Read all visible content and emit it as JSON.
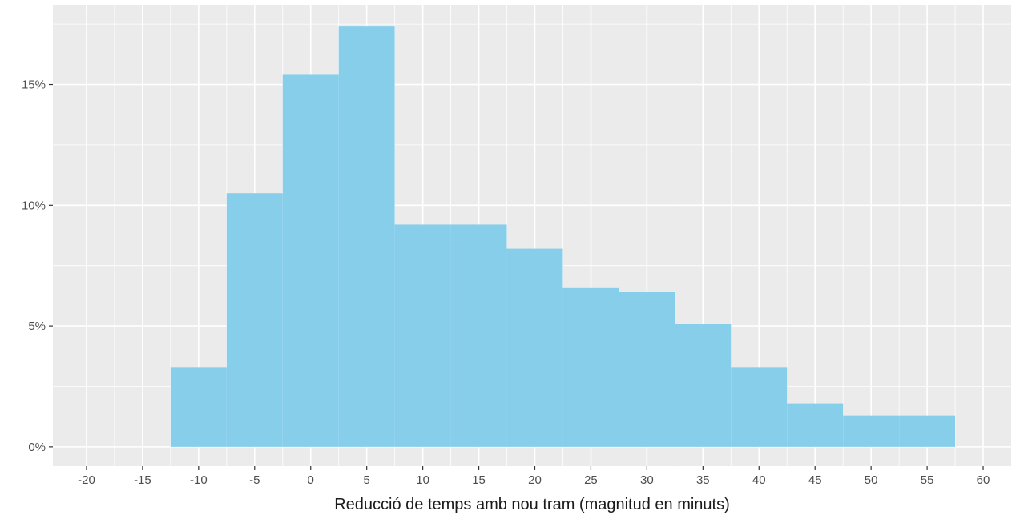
{
  "chart_data": {
    "type": "bar",
    "title": "",
    "xlabel": "Reducció de temps amb nou tram (magnitud en minuts)",
    "ylabel": "",
    "bin_width": 5,
    "bins": [
      {
        "center": -10,
        "value": 3.3
      },
      {
        "center": -5,
        "value": 10.5
      },
      {
        "center": 0,
        "value": 15.4
      },
      {
        "center": 5,
        "value": 17.4
      },
      {
        "center": 10,
        "value": 9.2
      },
      {
        "center": 15,
        "value": 9.2
      },
      {
        "center": 20,
        "value": 8.2
      },
      {
        "center": 25,
        "value": 6.6
      },
      {
        "center": 30,
        "value": 6.4
      },
      {
        "center": 35,
        "value": 5.1
      },
      {
        "center": 40,
        "value": 3.3
      },
      {
        "center": 45,
        "value": 1.8
      },
      {
        "center": 50,
        "value": 1.3
      },
      {
        "center": 55,
        "value": 1.3
      }
    ],
    "xlim": [
      -23,
      62.5
    ],
    "ylim": [
      -0.8,
      18.3
    ],
    "x_ticks": [
      -20,
      -15,
      -10,
      -5,
      0,
      5,
      10,
      15,
      20,
      25,
      30,
      35,
      40,
      45,
      50,
      55,
      60
    ],
    "x_tick_labels": [
      "-20",
      "-15",
      "-10",
      "-5",
      "0",
      "5",
      "10",
      "15",
      "20",
      "25",
      "30",
      "35",
      "40",
      "45",
      "50",
      "55",
      "60"
    ],
    "y_ticks": [
      0,
      5,
      10,
      15
    ],
    "y_tick_labels": [
      "0%",
      "5%",
      "10%",
      "15%"
    ],
    "grid": true,
    "legend": "none",
    "colors": {
      "bar_fill": "#87CEEB",
      "panel_background": "#EBEBEB",
      "grid": "#FFFFFF",
      "tick_text": "#4D4D4D",
      "title_text": "#1A1A1A"
    }
  }
}
